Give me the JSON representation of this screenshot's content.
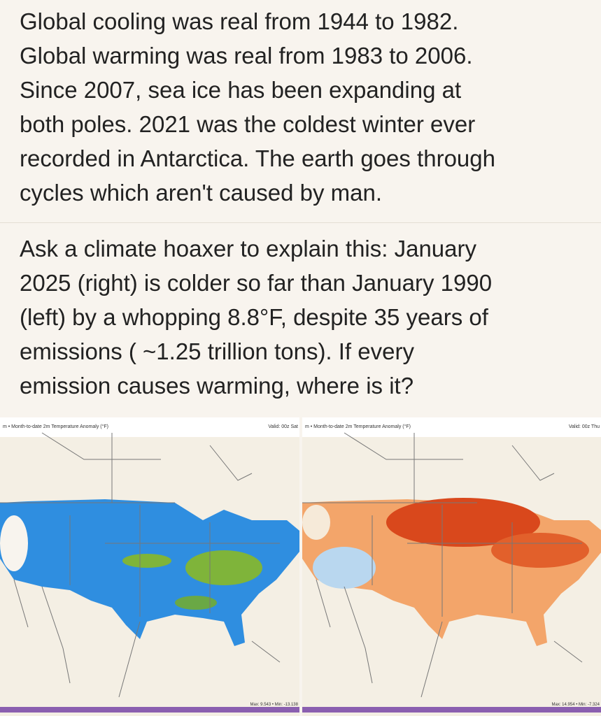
{
  "post": {
    "paragraphs": [
      {
        "lines": [
          "Global cooling was real from 1944 to 1982.",
          "Global warming was real from 1983 to 2006.",
          "Since 2007, sea ice has been expanding at",
          "both poles. 2021 was the coldest winter ever",
          "recorded in Antarctica. The earth goes through",
          "cycles which aren't caused by man."
        ]
      },
      {
        "lines": [
          "Ask a climate hoaxer to explain this: January",
          "2025 (right) is colder so far than January 1990",
          "(left) by a whopping 8.8°F, despite 35 years of",
          "emissions ( ~1.25 trillion tons). If every",
          "emission causes warming, where is it?"
        ]
      }
    ],
    "maps": [
      {
        "header": "m • Month-to-date 2m Temperature Anomaly (°F)",
        "valid": "Valid: 00z Sat",
        "stats": "Max: 9.543 • Min: -13.138"
      },
      {
        "header": "m • Month-to-date 2m Temperature Anomaly (°F)",
        "valid": "Valid: 00z Thu",
        "stats": "Max: 14.954 • Min: -7.324"
      }
    ]
  }
}
